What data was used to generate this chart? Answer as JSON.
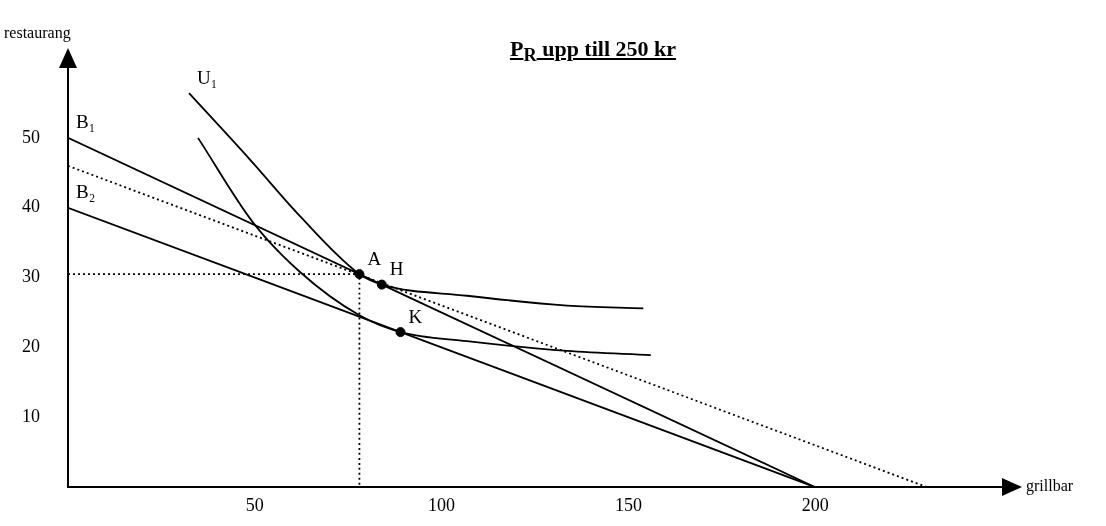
{
  "chart_data": {
    "type": "line",
    "title": "P$_{R}$ upp till 250 kr",
    "xlabel": "grillbar",
    "ylabel": "restaurang",
    "xlim": [
      0,
      250
    ],
    "ylim": [
      0,
      60
    ],
    "xticks": [
      50,
      100,
      150,
      200
    ],
    "yticks": [
      10,
      20,
      30,
      40,
      50
    ],
    "grid": false,
    "legend": false,
    "series": [
      {
        "type": "line",
        "color": "#000000",
        "line_style": "solid",
        "marker": "none",
        "x": [
          0,
          200
        ],
        "values": [
          50,
          0
        ]
      },
      {
        "type": "line",
        "color": "#000000",
        "line_style": "solid",
        "marker": "none",
        "x": [
          0,
          200
        ],
        "values": [
          40,
          0
        ]
      },
      {
        "type": "line",
        "color": "#000000",
        "line_style": "dotted",
        "marker": "none",
        "x": [
          0,
          230
        ],
        "values": [
          46,
          0
        ]
      },
      {
        "type": "line",
        "color": "#000000",
        "line_style": "solid",
        "marker": "none",
        "x": [
          32.4,
          48.7,
          62.1,
          78,
          84,
          106.8,
          133.6,
          154
        ],
        "values": [
          56.4,
          46.9,
          38.8,
          30.5,
          29,
          27.4,
          26,
          25.6
        ]
      },
      {
        "type": "line",
        "color": "#000000",
        "line_style": "solid",
        "marker": "none",
        "x": [
          34.8,
          49.5,
          62.1,
          78,
          89,
          106.8,
          133.6,
          156
        ],
        "values": [
          50,
          37.9,
          30.8,
          24.6,
          22.2,
          20.9,
          19.5,
          18.9
        ]
      },
      {
        "type": "line",
        "color": "#000000",
        "line_style": "dotted",
        "marker": "none",
        "x": [
          0,
          78,
          78
        ],
        "values": [
          30.5,
          30.5,
          0
        ]
      },
      {
        "type": "scatter",
        "color": "#000000",
        "marker": "circle",
        "x": [
          78,
          84,
          89
        ],
        "values": [
          30.5,
          29,
          22.2
        ]
      }
    ],
    "annotations": [
      {
        "text": "B₁",
        "x": 0,
        "y": 50
      },
      {
        "text": "B₂",
        "x": 0,
        "y": 40
      },
      {
        "text": "U₁",
        "x": 32.4,
        "y": 56.4
      },
      {
        "text": "A",
        "x": 78,
        "y": 30.5
      },
      {
        "text": "H",
        "x": 84,
        "y": 29
      },
      {
        "text": "K",
        "x": 89,
        "y": 22.2
      }
    ]
  }
}
